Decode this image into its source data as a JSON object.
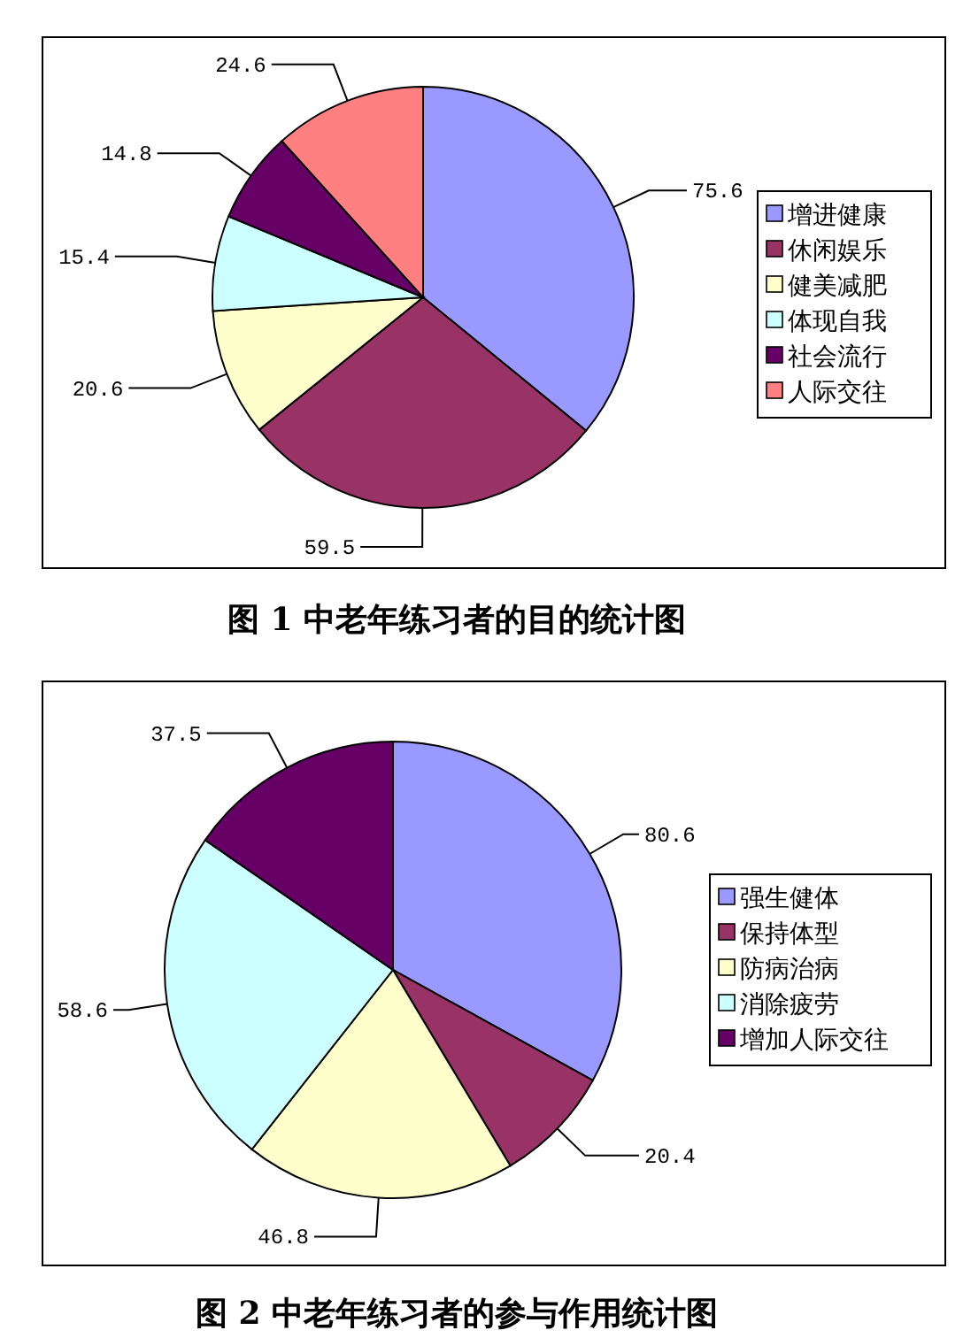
{
  "chart_data": [
    {
      "type": "pie",
      "title": "图 1  中老年练习者的目的统计图",
      "categories": [
        "增进健康",
        "休闲娱乐",
        "健美减肥",
        "体现自我",
        "社会流行",
        "人际交往"
      ],
      "values": [
        75.6,
        59.5,
        20.6,
        15.4,
        14.8,
        24.6
      ],
      "colors": [
        "#9999ff",
        "#993366",
        "#ffffcc",
        "#ccffff",
        "#660066",
        "#ff8080"
      ],
      "data_labels": true,
      "legend": "right"
    },
    {
      "type": "pie",
      "title": "图 2 中老年练习者的参与作用统计图",
      "categories": [
        "强生健体",
        "保持体型",
        "防病治病",
        "消除疲劳",
        "增加人际交往"
      ],
      "values": [
        80.6,
        20.4,
        46.8,
        58.6,
        37.5
      ],
      "colors": [
        "#9999ff",
        "#993366",
        "#ffffcc",
        "#ccffff",
        "#660066"
      ],
      "data_labels": true,
      "legend": "right"
    }
  ]
}
